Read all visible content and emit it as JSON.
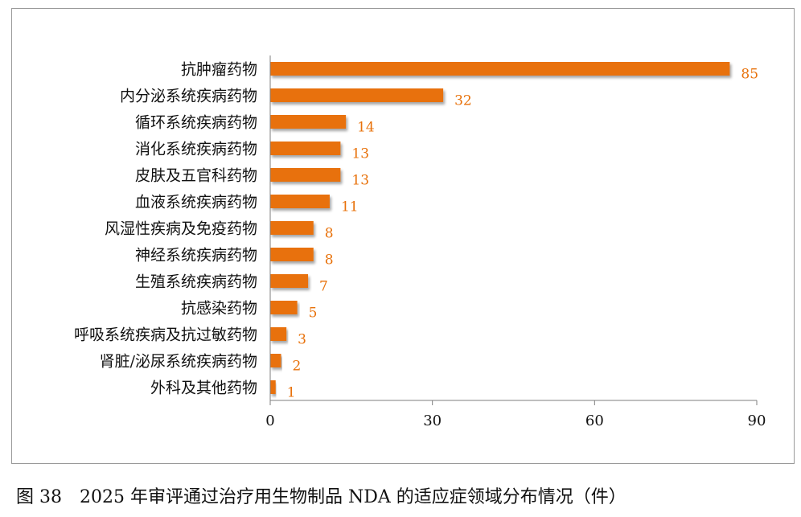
{
  "chart_data": {
    "type": "bar",
    "orientation": "horizontal",
    "categories": [
      "抗肿瘤药物",
      "内分泌系统疾病药物",
      "循环系统疾病药物",
      "消化系统疾病药物",
      "皮肤及五官科药物",
      "血液系统疾病药物",
      "风湿性疾病及免疫药物",
      "神经系统疾病药物",
      "生殖系统疾病药物",
      "抗感染药物",
      "呼吸系统疾病及抗过敏药物",
      "肾脏/泌尿系统疾病药物",
      "外科及其他药物"
    ],
    "values": [
      85,
      32,
      14,
      13,
      13,
      11,
      8,
      8,
      7,
      5,
      3,
      2,
      1
    ],
    "xlim": [
      0,
      90
    ],
    "xticks": [
      0,
      30,
      60,
      90
    ],
    "grid": false,
    "data_labels": true,
    "colors": {
      "bar": "#E8710A",
      "label": "#E8710A",
      "axis": "#7f7f7f",
      "text": "#111111"
    }
  },
  "caption": {
    "figure_number": "图 38",
    "text": "2025 年审评通过治疗用生物制品 NDA 的适应症领域分布情况（件）"
  }
}
